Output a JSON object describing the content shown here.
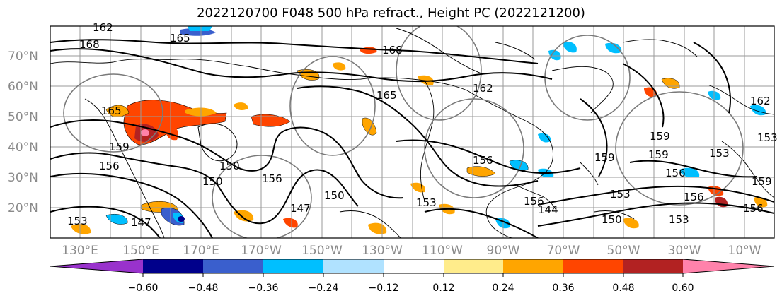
{
  "title": "2022120700 F048 500 hPa refract., Height PC (2022121200)",
  "lat_labels": [
    "70°N",
    "60°N",
    "50°N",
    "40°N",
    "30°N",
    "20°N"
  ],
  "lon_labels": [
    "130°E",
    "150°E",
    "170°E",
    "170°W",
    "150°W",
    "130°W",
    "110°W",
    "90°W",
    "70°W",
    "50°W",
    "30°W",
    "10°W"
  ],
  "contour_labels": [
    "162",
    "168",
    "165",
    "168",
    "162",
    "165",
    "165",
    "159",
    "156",
    "150",
    "156",
    "147",
    "150",
    "153",
    "159",
    "156",
    "159",
    "159",
    "156",
    "153",
    "156",
    "153",
    "159",
    "147",
    "150",
    "153",
    "156",
    "153",
    "162",
    "150",
    "153",
    "156",
    "144"
  ],
  "colorbar": {
    "colors": [
      "#9932CC",
      "#00008B",
      "#3A5FCD",
      "#00BFFF",
      "#B0E2FF",
      "#FFFFFF",
      "#FFEC8B",
      "#FFA500",
      "#FF4500",
      "#B22222",
      "#FF82AB"
    ],
    "tick_labels": [
      "−0.60",
      "−0.48",
      "−0.36",
      "−0.24",
      "−0.12",
      "0.12",
      "0.24",
      "0.36",
      "0.48",
      "0.60"
    ]
  }
}
